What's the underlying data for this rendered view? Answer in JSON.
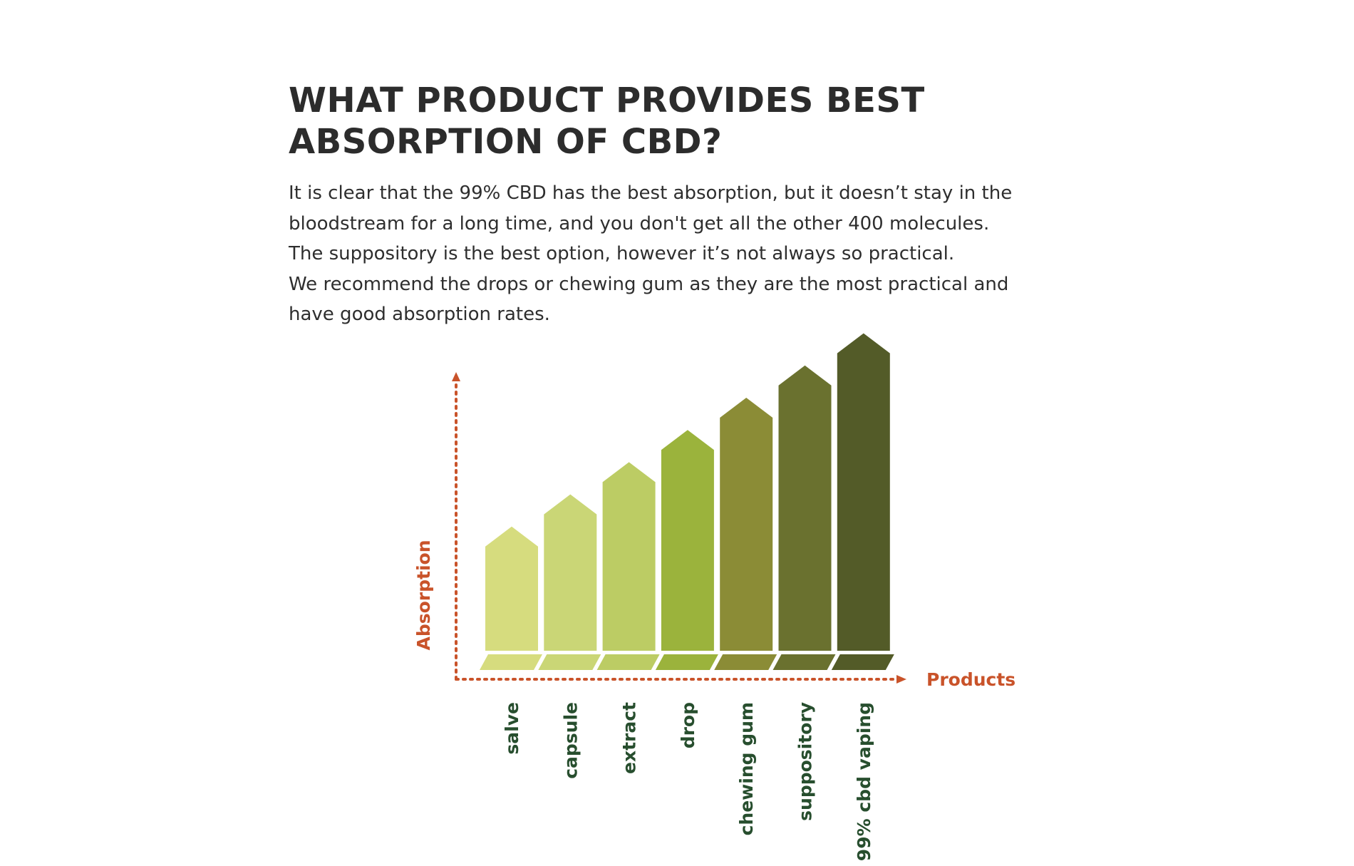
{
  "heading": {
    "line1": "WHAT PRODUCT PROVIDES BEST",
    "line2": "ABSORPTION OF CBD?"
  },
  "body": {
    "lines": [
      "It is clear that the 99% CBD has the best absorption, but it doesn’t stay in the",
      "bloodstream for a long time, and you don't get all the other 400 molecules.",
      "The suppository is the best option, however it’s not always so practical.",
      "We recommend the drops or chewing gum as they are the most practical and",
      "have good absorption rates."
    ]
  },
  "colors": {
    "axis": "#c9532a",
    "category_label": "#274e2e",
    "heading": "#2c2c2c",
    "body_text": "#2e2e2e"
  },
  "chart_data": {
    "type": "bar",
    "title": "",
    "xlabel": "Products",
    "ylabel": "Absorption",
    "categories": [
      "salve",
      "capsule",
      "extract",
      "drop",
      "chewing gum",
      "suppository",
      "99% cbd vaping"
    ],
    "series": [
      {
        "values": [
          1,
          2,
          3,
          4,
          5,
          6,
          7
        ],
        "colors": [
          "#d6dc7e",
          "#cad676",
          "#bccc64",
          "#9bb33c",
          "#8b8c36",
          "#6a712f",
          "#535b28"
        ]
      }
    ],
    "ylim": [
      0,
      8
    ],
    "grid": false,
    "legend": "none"
  }
}
